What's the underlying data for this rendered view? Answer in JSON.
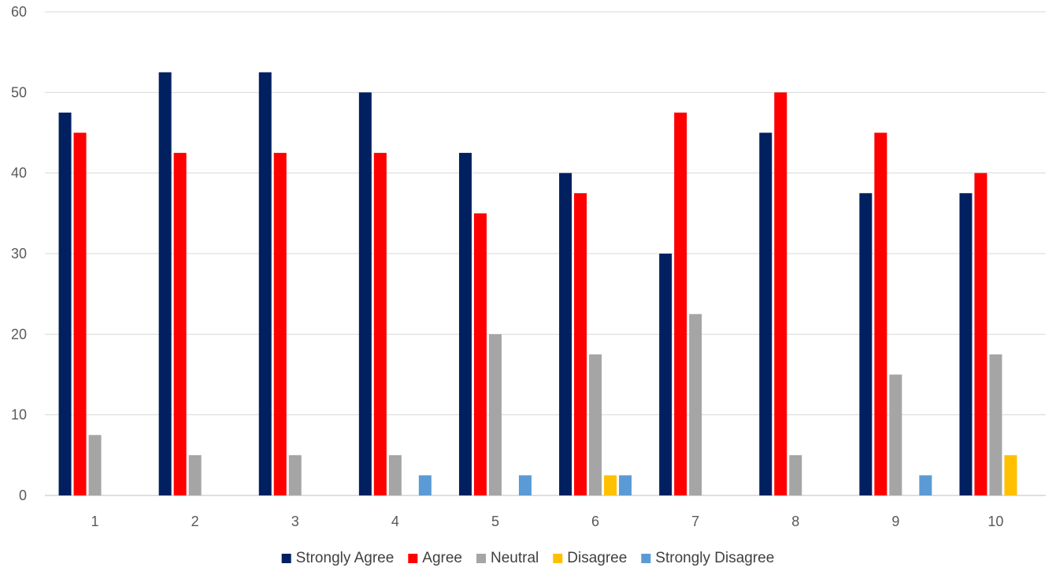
{
  "chart_data": {
    "type": "bar",
    "categories": [
      "1",
      "2",
      "3",
      "4",
      "5",
      "6",
      "7",
      "8",
      "9",
      "10"
    ],
    "series": [
      {
        "name": "Strongly Agree",
        "color": "#002060",
        "values": [
          47.5,
          52.5,
          52.5,
          50,
          42.5,
          40,
          30,
          45,
          37.5,
          37.5
        ]
      },
      {
        "name": "Agree",
        "color": "#ff0000",
        "values": [
          45,
          42.5,
          42.5,
          42.5,
          35,
          37.5,
          47.5,
          50,
          45,
          40
        ]
      },
      {
        "name": "Neutral",
        "color": "#a5a5a5",
        "values": [
          7.5,
          5,
          5,
          5,
          20,
          17.5,
          22.5,
          5,
          15,
          17.5
        ]
      },
      {
        "name": "Disagree",
        "color": "#ffc000",
        "values": [
          0,
          0,
          0,
          0,
          0,
          2.5,
          0,
          0,
          0,
          5
        ]
      },
      {
        "name": "Strongly Disagree",
        "color": "#5b9bd5",
        "values": [
          0,
          0,
          0,
          2.5,
          2.5,
          2.5,
          0,
          0,
          2.5,
          0
        ]
      }
    ],
    "title": "",
    "xlabel": "",
    "ylabel": "",
    "ylim": [
      0,
      60
    ],
    "yticks": [
      0,
      10,
      20,
      30,
      40,
      50,
      60
    ],
    "grid": true,
    "legend_position": "bottom"
  }
}
